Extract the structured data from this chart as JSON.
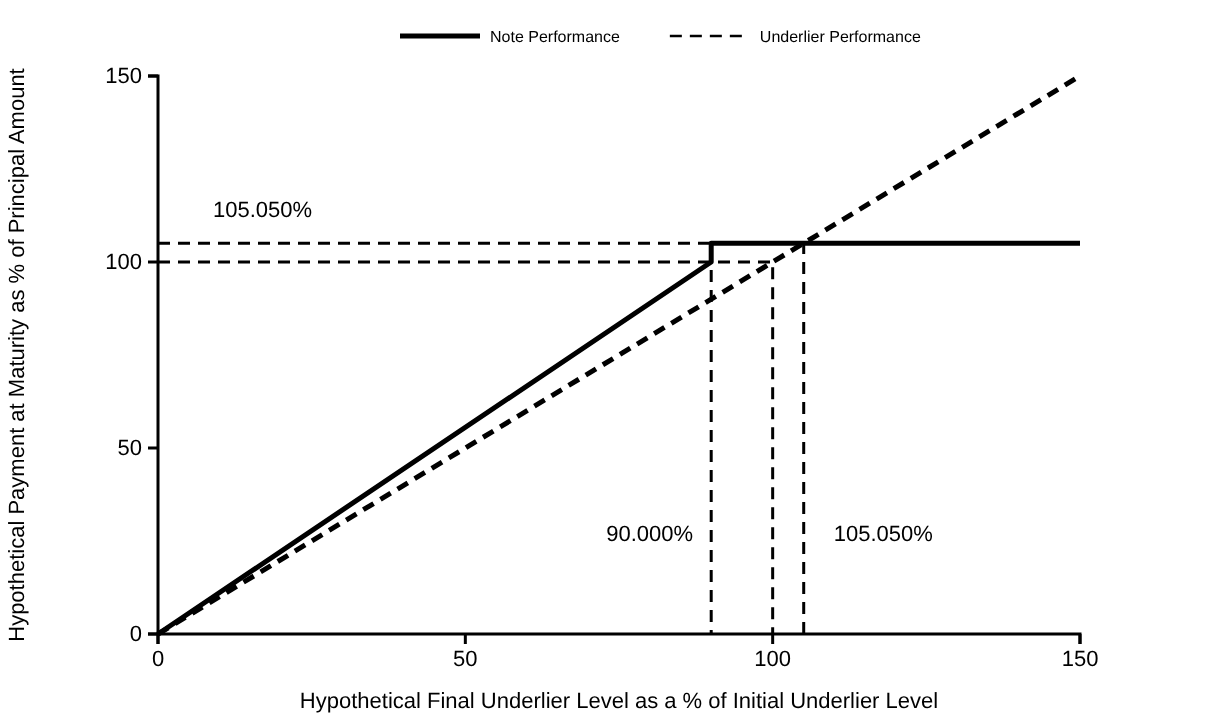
{
  "chart_data": {
    "type": "line",
    "xlabel": "Hypothetical Final Underlier Level as a % of Initial Underlier Level",
    "ylabel": "Hypothetical Payment at Maturity as % of Principal Amount",
    "xlim": [
      0,
      150
    ],
    "xticks": [
      0,
      50,
      100,
      150
    ],
    "ylim": [
      0,
      150
    ],
    "yticks": [
      0,
      50,
      100,
      150
    ],
    "grid": false,
    "legend": "top",
    "marker": "none",
    "series": [
      {
        "name": "Note Performance",
        "color": "#000000",
        "line_style": "solid",
        "x": [
          0,
          90,
          90,
          150
        ],
        "values": [
          0,
          100,
          105.05,
          105.05
        ]
      },
      {
        "name": "Underlier Performance",
        "color": "#000000",
        "line_style": "dashed",
        "x": [
          0,
          150
        ],
        "values": [
          0,
          150
        ]
      },
      {
        "color": "#000000",
        "line_style": "dashed",
        "x": [
          0,
          90,
          90
        ],
        "values": [
          105.05,
          105.05,
          0
        ]
      },
      {
        "color": "#000000",
        "line_style": "dashed",
        "x": [
          0,
          100,
          100
        ],
        "values": [
          100,
          100,
          0
        ]
      },
      {
        "color": "#000000",
        "line_style": "dashed",
        "x": [
          105.05,
          105.05
        ],
        "values": [
          0,
          105.05
        ]
      }
    ],
    "annotations": [
      "105.050%",
      "90.000%",
      "105.050%"
    ]
  }
}
